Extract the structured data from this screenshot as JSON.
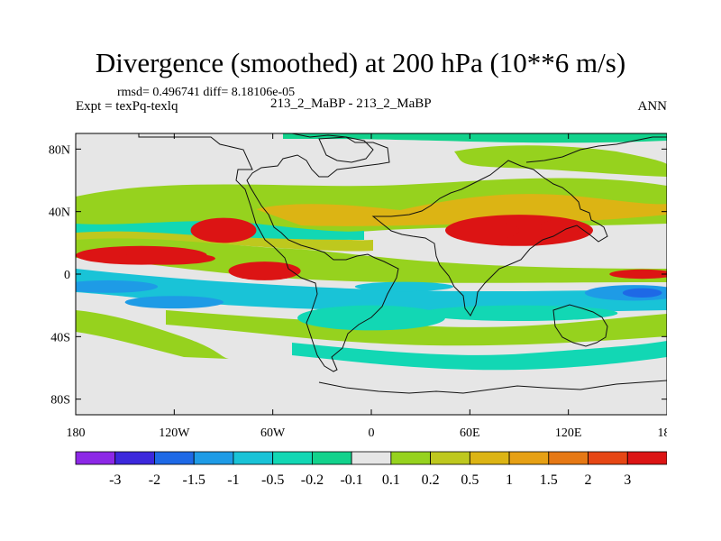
{
  "header": {
    "title": "Divergence (smoothed) at 200 hPa (10**6 m/s)",
    "stats": "rmsd= 0.496741 diff= 8.18106e-05",
    "expt": "Expt = texPq-texlq",
    "case": "213_2_MaBP - 213_2_MaBP",
    "season": "ANN"
  },
  "chart_data": {
    "type": "heatmap",
    "title": "Divergence (smoothed) at 200 hPa (10**6 m/s)",
    "x_axis": {
      "range": [
        -180,
        180
      ],
      "ticks": [
        -180,
        -120,
        -60,
        0,
        60,
        120,
        180
      ],
      "tick_labels": [
        "180",
        "120W",
        "60W",
        "0",
        "60E",
        "120E",
        "180"
      ]
    },
    "y_axis": {
      "range": [
        -90,
        90
      ],
      "ticks": [
        80,
        40,
        0,
        -40,
        -80
      ],
      "tick_labels": [
        "80N",
        "40N",
        "0",
        "40S",
        "80S"
      ]
    },
    "colorbar": {
      "colors": [
        "#8c28e6",
        "#3c28dc",
        "#1e69e6",
        "#1e9be6",
        "#19c3d7",
        "#12d7b4",
        "#12d28c",
        "#e6e6e6",
        "#96d21e",
        "#bec81e",
        "#dcb414",
        "#e6a014",
        "#e67814",
        "#e64614",
        "#dc1414"
      ],
      "labels": [
        "-3",
        "-2",
        "-1.5",
        "-1",
        "-0.5",
        "-0.2",
        "-0.1",
        "0.1",
        "0.2",
        "0.5",
        "1",
        "1.5",
        "2",
        "3"
      ]
    },
    "features": [
      {
        "lon": -140,
        "lat": 12,
        "w": 40,
        "h": 6,
        "level": 8
      },
      {
        "lon": -125,
        "lat": 10,
        "w": 30,
        "h": 4,
        "level": 9
      },
      {
        "lon": -65,
        "lat": 2,
        "w": 22,
        "h": 6,
        "level": 8
      },
      {
        "lon": -62,
        "lat": 1,
        "w": 12,
        "h": 3,
        "level": 10
      },
      {
        "lon": -63,
        "lat": 1,
        "w": 6,
        "h": 2,
        "level": 12
      },
      {
        "lon": -160,
        "lat": -8,
        "w": 30,
        "h": 4,
        "level": -4
      },
      {
        "lon": -120,
        "lat": -18,
        "w": 30,
        "h": 4,
        "level": -4
      },
      {
        "lon": 160,
        "lat": -12,
        "w": 30,
        "h": 5,
        "level": -4
      },
      {
        "lon": 165,
        "lat": -12,
        "w": 12,
        "h": 3,
        "level": -5
      },
      {
        "lon": 165,
        "lat": 0,
        "w": 20,
        "h": 3,
        "level": 9
      },
      {
        "lon": 168,
        "lat": 0,
        "w": 8,
        "h": 2,
        "level": 11
      },
      {
        "lon": 90,
        "lat": 28,
        "w": 45,
        "h": 10,
        "level": 7
      },
      {
        "lon": 70,
        "lat": 28,
        "w": 20,
        "h": 6,
        "level": 8
      },
      {
        "lon": 115,
        "lat": 30,
        "w": 12,
        "h": 5,
        "level": 8
      },
      {
        "lon": -90,
        "lat": 28,
        "w": 20,
        "h": 8,
        "level": 7
      },
      {
        "lon": 0,
        "lat": -28,
        "w": 45,
        "h": 8,
        "level": -2
      },
      {
        "lon": 90,
        "lat": -25,
        "w": 60,
        "h": 5,
        "level": -2
      },
      {
        "lon": 20,
        "lat": -8,
        "w": 30,
        "h": 3,
        "level": -3
      }
    ]
  }
}
